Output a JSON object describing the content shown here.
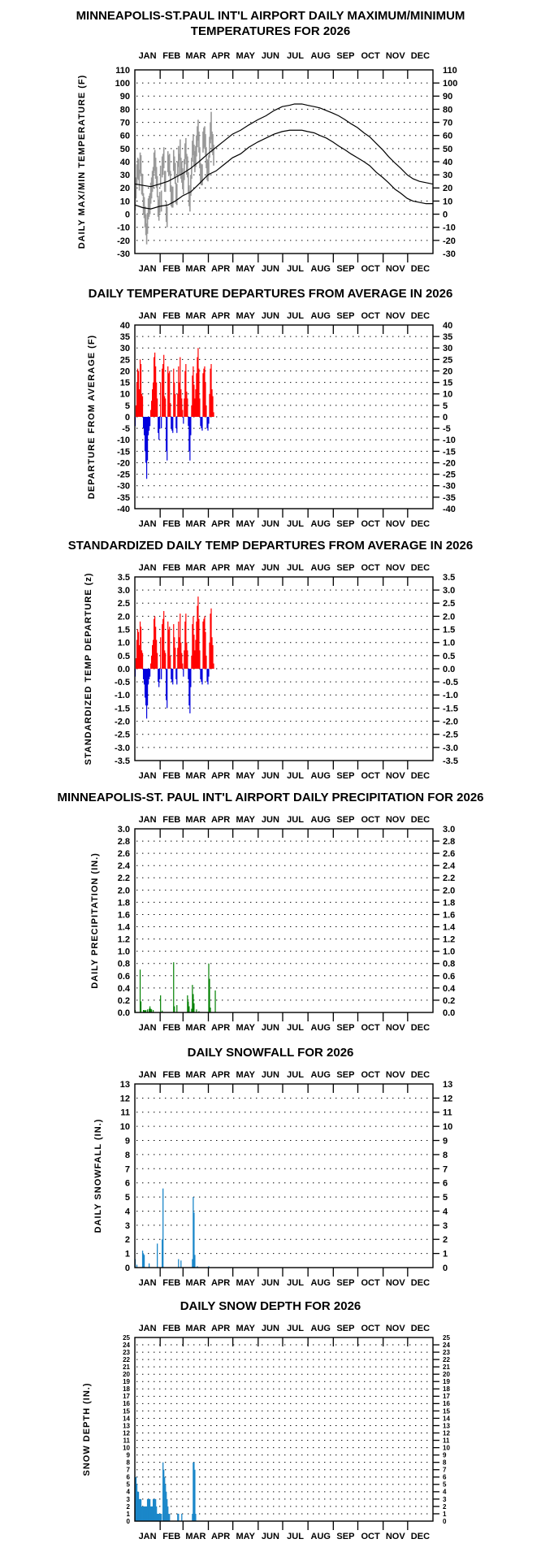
{
  "page": {
    "background": "#ffffff"
  },
  "months": [
    "JAN",
    "FEB",
    "MAR",
    "APR",
    "MAY",
    "JUN",
    "JUL",
    "AUG",
    "SEP",
    "OCT",
    "NOV",
    "DEC"
  ],
  "chart_data": [
    {
      "type": "line",
      "title_line1": "MINNEAPOLIS-ST.PAUL INT'L AIRPORT DAILY MAXIMUM/MINIMUM",
      "title_line2": "TEMPERATURES FOR 2026",
      "ylabel": "DAILY MAX/MIN TEMPERATURE (F)",
      "ylim": [
        -30,
        110
      ],
      "step": 10,
      "decimals": 0,
      "legend_position": "none",
      "grid": "dotted-horizontal",
      "colors": {
        "observed": "#999999",
        "normal": "#000000"
      },
      "series": [
        {
          "name": "observed_daily_max",
          "values": [
            19,
            28,
            38,
            43,
            42,
            34,
            47,
            45,
            31,
            30,
            16,
            13,
            6,
            0,
            -7,
            1,
            12,
            14,
            16,
            24,
            28,
            33,
            36,
            47,
            49,
            43,
            36,
            29,
            14,
            11,
            17,
            37,
            18,
            44,
            46,
            51,
            33,
            33,
            10,
            6,
            48,
            45,
            46,
            33,
            22,
            21,
            21,
            49,
            44,
            39,
            24,
            23,
            40,
            52,
            46,
            57,
            43,
            40,
            35,
            31,
            42,
            54,
            58,
            46,
            44,
            32,
            22,
            18,
            30,
            43,
            56,
            61,
            53,
            48,
            52,
            60,
            67,
            72,
            63,
            51,
            39,
            38,
            38,
            63,
            66,
            67,
            61,
            51,
            42,
            41,
            45,
            59,
            70,
            78,
            63,
            61,
            53,
            null,
            null,
            null
          ]
        },
        {
          "name": "observed_daily_min",
          "values": [
            3,
            12,
            22,
            27,
            26,
            18,
            31,
            29,
            15,
            14,
            0,
            -3,
            -10,
            -16,
            -23,
            -15,
            -4,
            -2,
            0,
            8,
            12,
            17,
            20,
            31,
            33,
            27,
            20,
            13,
            -2,
            -5,
            1,
            21,
            2,
            28,
            30,
            35,
            17,
            17,
            -6,
            -10,
            32,
            29,
            30,
            17,
            6,
            5,
            5,
            33,
            28,
            23,
            8,
            7,
            24,
            36,
            30,
            41,
            27,
            24,
            19,
            15,
            26,
            38,
            42,
            30,
            28,
            16,
            6,
            2,
            14,
            27,
            40,
            45,
            37,
            32,
            36,
            44,
            51,
            56,
            47,
            35,
            23,
            22,
            22,
            47,
            50,
            51,
            45,
            35,
            26,
            25,
            29,
            43,
            54,
            57,
            47,
            45,
            37,
            null,
            null,
            null
          ]
        },
        {
          "name": "normal_max_anchors",
          "points": [
            [
              1,
              23
            ],
            [
              10,
              22
            ],
            [
              20,
              21
            ],
            [
              31,
              23
            ],
            [
              41,
              25
            ],
            [
              50,
              28
            ],
            [
              59,
              31
            ],
            [
              69,
              35
            ],
            [
              79,
              40
            ],
            [
              90,
              46
            ],
            [
              100,
              51
            ],
            [
              110,
              56
            ],
            [
              120,
              61
            ],
            [
              130,
              64
            ],
            [
              140,
              68
            ],
            [
              151,
              72
            ],
            [
              161,
              75
            ],
            [
              171,
              79
            ],
            [
              181,
              82
            ],
            [
              190,
              83
            ],
            [
              196,
              84
            ],
            [
              205,
              84
            ],
            [
              212,
              83
            ],
            [
              220,
              82
            ],
            [
              227,
              81
            ],
            [
              235,
              79
            ],
            [
              243,
              77
            ],
            [
              250,
              75
            ],
            [
              258,
              72
            ],
            [
              265,
              69
            ],
            [
              273,
              66
            ],
            [
              281,
              62
            ],
            [
              288,
              59
            ],
            [
              296,
              54
            ],
            [
              304,
              49
            ],
            [
              311,
              44
            ],
            [
              319,
              39
            ],
            [
              326,
              35
            ],
            [
              334,
              30
            ],
            [
              341,
              27
            ],
            [
              349,
              25
            ],
            [
              357,
              24
            ],
            [
              365,
              23
            ]
          ]
        },
        {
          "name": "normal_min_anchors",
          "points": [
            [
              1,
              7
            ],
            [
              10,
              5
            ],
            [
              20,
              4
            ],
            [
              31,
              6
            ],
            [
              41,
              7
            ],
            [
              50,
              10
            ],
            [
              59,
              14
            ],
            [
              69,
              17
            ],
            [
              79,
              23
            ],
            [
              90,
              30
            ],
            [
              100,
              33
            ],
            [
              110,
              38
            ],
            [
              120,
              43
            ],
            [
              130,
              46
            ],
            [
              140,
              51
            ],
            [
              151,
              55
            ],
            [
              161,
              58
            ],
            [
              171,
              61
            ],
            [
              181,
              63
            ],
            [
              190,
              64
            ],
            [
              196,
              64
            ],
            [
              205,
              64
            ],
            [
              212,
              63
            ],
            [
              220,
              62
            ],
            [
              227,
              60
            ],
            [
              235,
              58
            ],
            [
              243,
              55
            ],
            [
              250,
              52
            ],
            [
              258,
              49
            ],
            [
              265,
              46
            ],
            [
              273,
              43
            ],
            [
              281,
              40
            ],
            [
              288,
              37
            ],
            [
              296,
              32
            ],
            [
              304,
              28
            ],
            [
              311,
              24
            ],
            [
              319,
              19
            ],
            [
              326,
              16
            ],
            [
              334,
              12
            ],
            [
              341,
              10
            ],
            [
              349,
              9
            ],
            [
              357,
              8
            ],
            [
              365,
              8
            ]
          ]
        }
      ]
    },
    {
      "type": "bar",
      "title": "DAILY TEMPERATURE DEPARTURES FROM AVERAGE IN 2026",
      "ylabel": "DEPARTURE FROM AVERAGE (F)",
      "ylim": [
        -40,
        40
      ],
      "step": 5,
      "decimals": 0,
      "grid": "dotted-horizontal",
      "colors": {
        "positive": "#ff0000",
        "negative": "#0000dd"
      },
      "values": [
        -4,
        5,
        15,
        21,
        20,
        12,
        25,
        23,
        10,
        9,
        -5,
        -8,
        -15,
        -20,
        -27,
        -19,
        -8,
        -6,
        -4,
        3,
        7,
        12,
        15,
        26,
        28,
        22,
        15,
        8,
        -7,
        -10,
        -5,
        15,
        -5,
        21,
        23,
        27,
        9,
        8,
        -15,
        -19,
        22,
        19,
        20,
        6,
        -5,
        -6,
        -7,
        21,
        15,
        10,
        -5,
        -7,
        10,
        22,
        15,
        26,
        12,
        8,
        3,
        -3,
        8,
        20,
        23,
        11,
        8,
        -4,
        -15,
        -19,
        -8,
        5,
        18,
        22,
        14,
        8,
        12,
        19,
        26,
        30,
        21,
        8,
        -4,
        -5,
        -6,
        19,
        21,
        22,
        15,
        5,
        -5,
        -6,
        -3,
        10,
        21,
        23,
        12,
        9,
        2,
        null,
        null,
        null
      ]
    },
    {
      "type": "bar",
      "title": "STANDARDIZED DAILY TEMP DEPARTURES FROM AVERAGE IN 2026",
      "ylabel": "STANDARDIZED TEMP DEPARTURE (z)",
      "ylim": [
        -3.5,
        3.5
      ],
      "step": 0.5,
      "decimals": 1,
      "grid": "dotted-horizontal",
      "colors": {
        "positive": "#ff0000",
        "negative": "#0000dd"
      },
      "values": [
        -0.3,
        0.4,
        1.1,
        1.5,
        1.4,
        0.9,
        1.8,
        1.6,
        0.7,
        0.6,
        -0.4,
        -0.6,
        -1.1,
        -1.4,
        -1.9,
        -1.4,
        -0.6,
        -0.4,
        -0.3,
        0.2,
        0.5,
        0.9,
        1.1,
        1.9,
        2.0,
        1.6,
        1.1,
        0.6,
        -0.5,
        -0.7,
        -0.4,
        1.2,
        -0.4,
        1.7,
        1.9,
        2.2,
        0.7,
        0.6,
        -1.2,
        -1.5,
        1.8,
        1.5,
        1.6,
        0.5,
        -0.4,
        -0.5,
        -0.6,
        1.7,
        1.2,
        0.8,
        -0.4,
        -0.6,
        0.8,
        1.8,
        1.2,
        2.1,
        1.0,
        0.6,
        0.2,
        -0.3,
        0.7,
        1.8,
        2.1,
        1.0,
        0.7,
        -0.4,
        -1.4,
        -1.7,
        -0.7,
        0.5,
        1.7,
        2.0,
        1.3,
        0.7,
        1.1,
        1.8,
        2.4,
        2.75,
        1.9,
        0.7,
        -0.4,
        -0.5,
        -0.6,
        1.8,
        1.9,
        2.0,
        1.4,
        0.5,
        -0.5,
        -0.6,
        -0.3,
        1.0,
        2.1,
        2.3,
        1.2,
        0.9,
        0.2,
        null,
        null,
        null
      ]
    },
    {
      "type": "bar",
      "title": "MINNEAPOLIS-ST. PAUL INT'L AIRPORT DAILY PRECIPITATION FOR 2026",
      "ylabel": "DAILY PRECIPITATION (IN.)",
      "ylim": [
        0,
        3.0
      ],
      "step": 0.2,
      "decimals": 1,
      "grid": "dotted-horizontal",
      "colors": {
        "positive": "#008000",
        "negative": "#008000"
      },
      "values": [
        0.04,
        0,
        0,
        0,
        0,
        0,
        0.7,
        0.18,
        0,
        0,
        0.04,
        0.04,
        0.03,
        0.04,
        0,
        0.05,
        0,
        0.06,
        0.1,
        0.06,
        0.05,
        0,
        0.04,
        0,
        0,
        0,
        0,
        0,
        0,
        0,
        0,
        0.28,
        0,
        0.03,
        0,
        0,
        0,
        0,
        0,
        0,
        0,
        0,
        0,
        0,
        0,
        0,
        0,
        0.82,
        0.1,
        0,
        0,
        0.12,
        0,
        0,
        0,
        0,
        0,
        0,
        0,
        0,
        0,
        0,
        0,
        0,
        0.28,
        0.18,
        0.1,
        0,
        0,
        0.06,
        0.45,
        0.3,
        0.15,
        0,
        0,
        0.05,
        0,
        0,
        0.02,
        0,
        0,
        0,
        0,
        0,
        0,
        0,
        0,
        0,
        0,
        0,
        0.8,
        0.55,
        0.08,
        0,
        0,
        0,
        0,
        0,
        0.36,
        0
      ]
    },
    {
      "type": "bar",
      "title": "DAILY SNOWFALL FOR 2026",
      "ylabel": "DAILY SNOWFALL (IN.)",
      "ylim": [
        0,
        13
      ],
      "step": 1,
      "decimals": 0,
      "grid": "dotted-horizontal",
      "colors": {
        "positive": "#1b87c9",
        "negative": "#1b87c9"
      },
      "values": [
        0.6,
        0,
        0.2,
        0,
        0,
        0,
        0,
        0,
        0,
        1.2,
        1.0,
        0.9,
        0,
        0,
        0,
        0,
        0,
        0.3,
        0,
        0,
        0,
        0,
        0,
        0,
        0,
        0,
        0,
        1.7,
        0,
        0,
        0,
        0,
        0,
        2.0,
        5.6,
        0,
        0,
        0,
        0,
        0,
        0,
        0,
        0,
        0,
        0,
        0,
        0,
        0,
        0,
        0,
        0,
        0,
        0,
        0.6,
        0,
        0,
        0.5,
        0,
        0,
        0,
        0,
        0,
        0,
        0,
        0,
        0,
        0,
        0,
        0,
        0,
        0.6,
        5.0,
        3.9,
        0.9,
        0,
        0,
        0.1,
        0,
        0,
        0,
        0,
        0,
        0,
        0,
        0,
        0,
        0,
        0,
        0,
        0,
        0.1,
        0,
        0,
        0,
        0,
        0,
        0,
        0,
        0,
        0
      ]
    },
    {
      "type": "bar",
      "title": "DAILY SNOW DEPTH FOR 2026",
      "ylabel": "SNOW DEPTH (IN.)",
      "ylim": [
        0,
        25
      ],
      "step": 1,
      "decimals": 0,
      "grid": "dotted-horizontal",
      "colors": {
        "positive": "#1b87c9",
        "negative": "#1b87c9"
      },
      "values": [
        6,
        6,
        5,
        4,
        4,
        3,
        3,
        3,
        2,
        2,
        2,
        2,
        2,
        2,
        2,
        3,
        3,
        3,
        3,
        2,
        2,
        2,
        3,
        3,
        3,
        3,
        2,
        1,
        1,
        1,
        1,
        1,
        1,
        0,
        8,
        7,
        6,
        5,
        4,
        3,
        2,
        1,
        1,
        0,
        0,
        0,
        0,
        0,
        0,
        0,
        0,
        0,
        1,
        1,
        0,
        0,
        0,
        1,
        0,
        0,
        0,
        0,
        0,
        0,
        0,
        0,
        0,
        0,
        0,
        0,
        1,
        8,
        8,
        7,
        1,
        0,
        0,
        0,
        0,
        0,
        0,
        0,
        0,
        0,
        0,
        0,
        0,
        0,
        0,
        0,
        0,
        0,
        0,
        0,
        0,
        0,
        0,
        0,
        0,
        0
      ]
    }
  ]
}
